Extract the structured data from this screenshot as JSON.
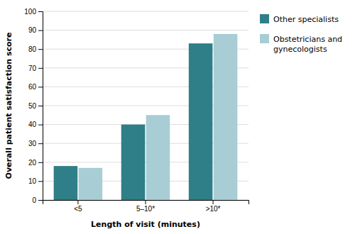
{
  "chart_data": {
    "type": "bar",
    "categories": [
      "<5",
      "5–10*",
      ">10*"
    ],
    "series": [
      {
        "name": "Other specialists",
        "color": "#2e7f87",
        "values": [
          18,
          40,
          83
        ]
      },
      {
        "name": "Obstetricians and\ngynecologists",
        "color": "#a8cdd4",
        "values": [
          17,
          45,
          88
        ]
      }
    ],
    "xlabel": "Length of visit (minutes)",
    "ylabel": "Overall patient satisfaction score",
    "ylim": [
      0,
      100
    ],
    "yticks": [
      0,
      10,
      20,
      30,
      40,
      50,
      60,
      70,
      80,
      90,
      100
    ],
    "grid": true,
    "legend": "right"
  }
}
